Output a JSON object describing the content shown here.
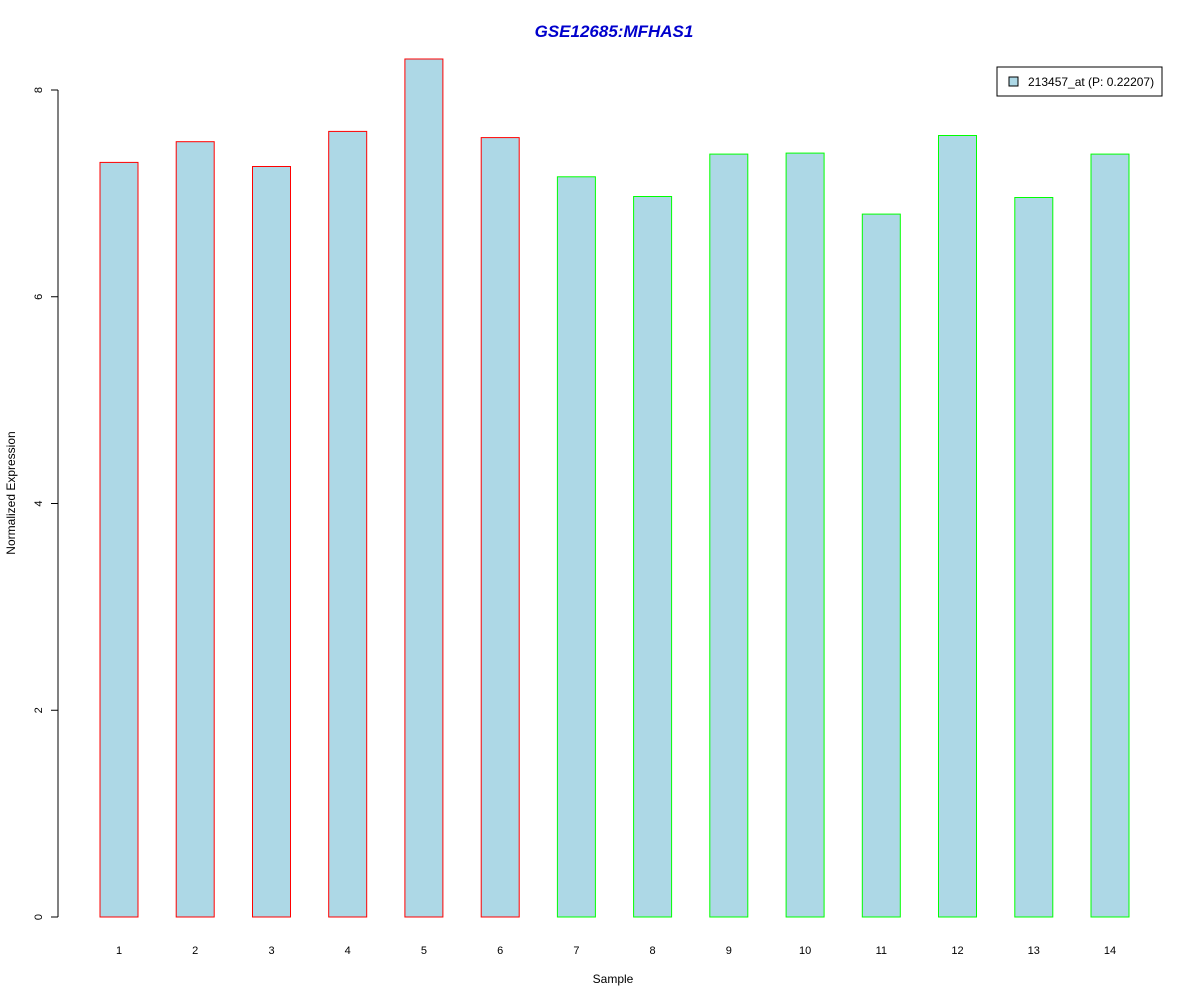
{
  "chart_data": {
    "type": "bar",
    "title": "GSE12685:MFHAS1",
    "xlabel": "Sample",
    "ylabel": "Normalized Expression",
    "categories": [
      "1",
      "2",
      "3",
      "4",
      "5",
      "6",
      "7",
      "8",
      "9",
      "10",
      "11",
      "12",
      "13",
      "14"
    ],
    "series": [
      {
        "name": "213457_at (P: 0.22207)",
        "values": [
          7.3,
          7.5,
          7.26,
          7.6,
          8.3,
          7.54,
          7.16,
          6.97,
          7.38,
          7.39,
          6.8,
          7.56,
          6.96,
          7.38
        ]
      }
    ],
    "groups": [
      1,
      1,
      1,
      1,
      1,
      1,
      2,
      2,
      2,
      2,
      2,
      2,
      2,
      2
    ],
    "yticks": [
      0,
      2,
      4,
      6,
      8
    ],
    "ylim": [
      0,
      8.3
    ],
    "grid": false,
    "legend_position": "top-right",
    "colors": {
      "title": "#0000cc",
      "bar_fill": "#add8e6",
      "group1_border": "#ff0000",
      "group2_border": "#00ff00",
      "axis": "#000000"
    }
  }
}
